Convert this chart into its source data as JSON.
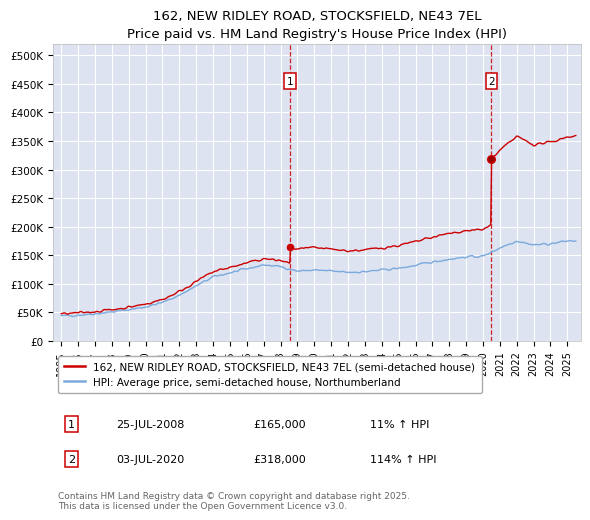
{
  "title": "162, NEW RIDLEY ROAD, STOCKSFIELD, NE43 7EL",
  "subtitle": "Price paid vs. HM Land Registry's House Price Index (HPI)",
  "ylabel_ticks": [
    "£0",
    "£50K",
    "£100K",
    "£150K",
    "£200K",
    "£250K",
    "£300K",
    "£350K",
    "£400K",
    "£450K",
    "£500K"
  ],
  "ytick_vals": [
    0,
    50000,
    100000,
    150000,
    200000,
    250000,
    300000,
    350000,
    400000,
    450000,
    500000
  ],
  "ylim": [
    0,
    520000
  ],
  "xlim_start": 1994.5,
  "xlim_end": 2025.8,
  "background_color": "#dde3f0",
  "grid_color": "#ffffff",
  "transaction1_price": 165000,
  "transaction1_x": 2008.55,
  "transaction2_price": 318000,
  "transaction2_x": 2020.5,
  "legend_line1": "162, NEW RIDLEY ROAD, STOCKSFIELD, NE43 7EL (semi-detached house)",
  "legend_line2": "HPI: Average price, semi-detached house, Northumberland",
  "footnote": "Contains HM Land Registry data © Crown copyright and database right 2025.\nThis data is licensed under the Open Government Licence v3.0.",
  "table_row1_label": "1",
  "table_row1_date": "25-JUL-2008",
  "table_row1_price": "£165,000",
  "table_row1_hpi": "11% ↑ HPI",
  "table_row2_label": "2",
  "table_row2_date": "03-JUL-2020",
  "table_row2_price": "£318,000",
  "table_row2_hpi": "114% ↑ HPI",
  "red_line_color": "#cc0000",
  "blue_line_color": "#7aaadd",
  "vline_color": "#cc0000",
  "marker_box_color": "#cc0000",
  "title_fontsize": 9.5,
  "subtitle_fontsize": 8.5,
  "tick_fontsize": 7.5,
  "legend_fontsize": 7.5,
  "table_fontsize": 8,
  "footnote_fontsize": 6.5,
  "hpi_years": [
    1995,
    1996,
    1997,
    1998,
    1999,
    2000,
    2001,
    2002,
    2003,
    2004,
    2005,
    2006,
    2007,
    2008,
    2009,
    2010,
    2011,
    2012,
    2013,
    2014,
    2015,
    2016,
    2017,
    2018,
    2019,
    2020,
    2021,
    2022,
    2023,
    2024,
    2025
  ],
  "hpi_values": [
    43500,
    45000,
    47500,
    50500,
    54500,
    59500,
    67000,
    80000,
    96000,
    112000,
    119000,
    126000,
    133000,
    130000,
    122000,
    124000,
    122000,
    120000,
    121000,
    124000,
    127000,
    132000,
    138000,
    143000,
    147000,
    148000,
    163000,
    175000,
    168000,
    170000,
    175000
  ],
  "hpi_noise_seed": 42,
  "hpi_noise_scale": 1800,
  "red_noise_scale": 2200,
  "initial_price": 47000
}
